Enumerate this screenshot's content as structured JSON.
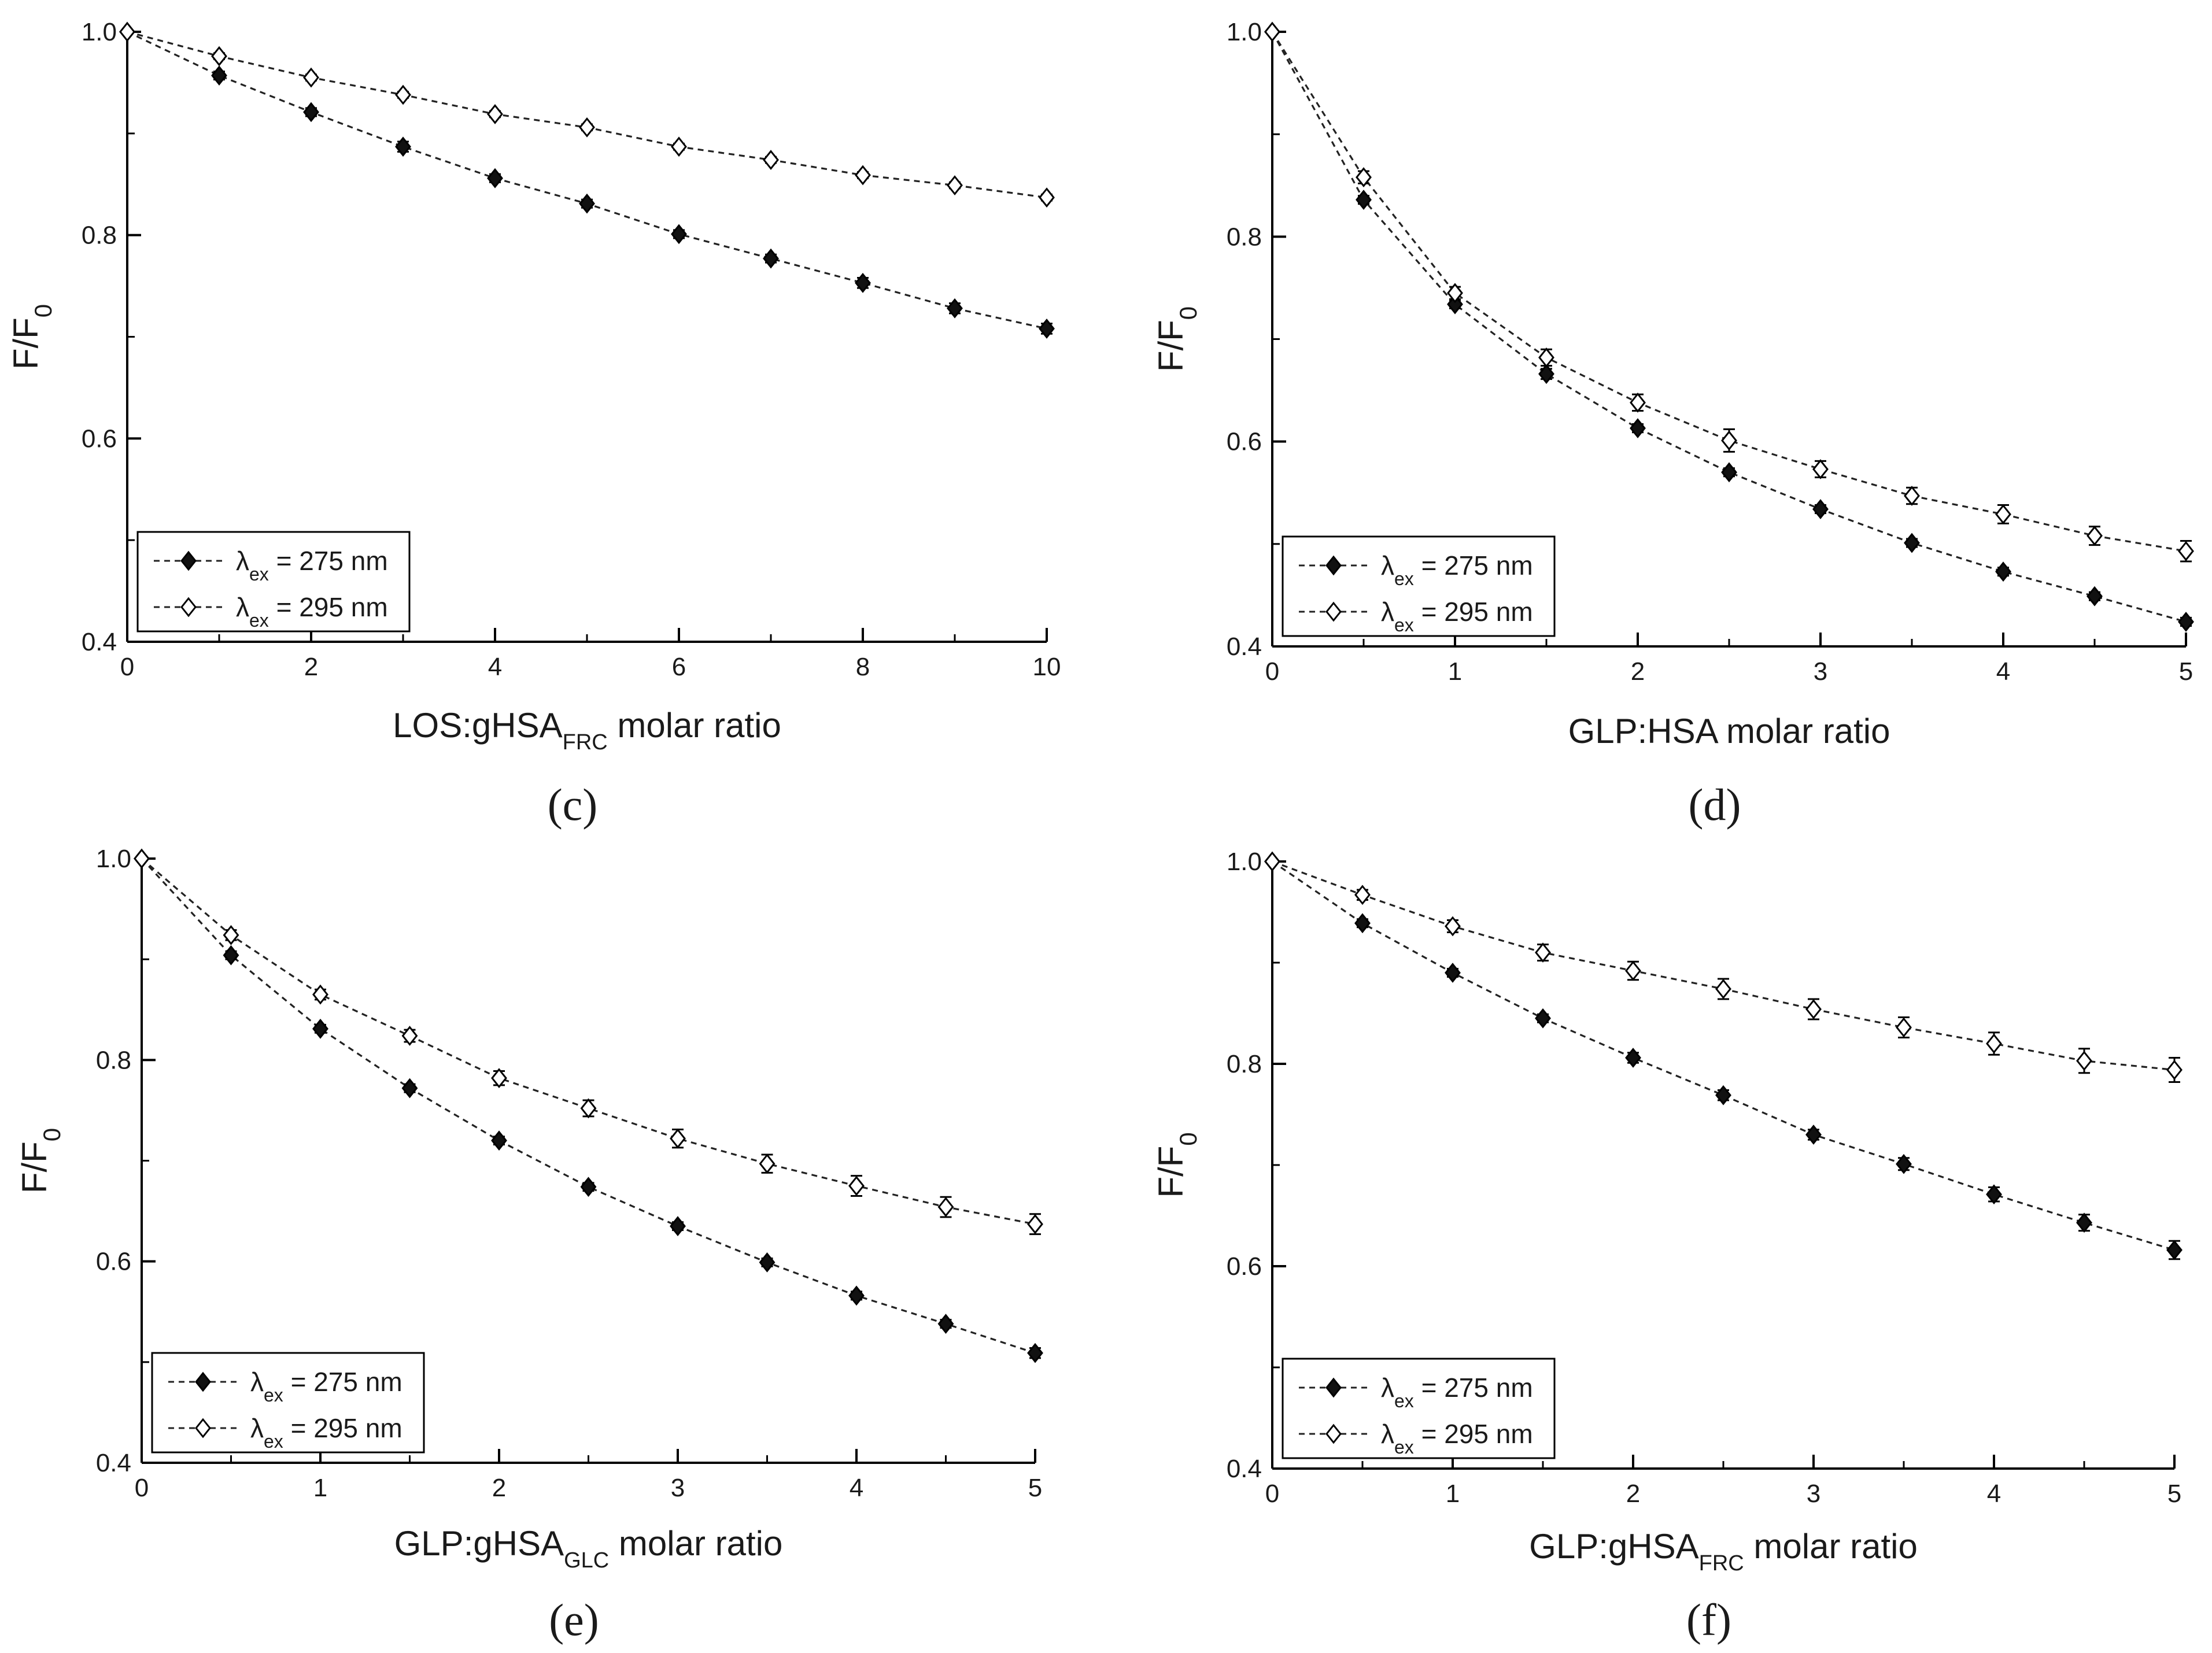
{
  "colors": {
    "line": "#222222",
    "filled_marker": "#111111",
    "open_marker_fill": "#ffffff",
    "background": "#ffffff"
  },
  "legend_labels": {
    "s275": {
      "symbol": "λ",
      "sub": "ex",
      "rest": " = 275 nm"
    },
    "s295": {
      "symbol": "λ",
      "sub": "ex",
      "rest": " = 295 nm"
    }
  },
  "chart_data": [
    {
      "type": "line",
      "panel": "(c)",
      "ylabel": {
        "main": "F/F",
        "sub": "0"
      },
      "xlabel": {
        "pre": "LOS:gHSA",
        "sub": "FRC",
        "post": " molar ratio"
      },
      "xlim": [
        0,
        10
      ],
      "ylim": [
        0.4,
        1.0
      ],
      "xticks": [
        "0",
        "2",
        "4",
        "6",
        "8",
        "10"
      ],
      "yticks": [
        "0.4",
        "0.6",
        "0.8",
        "1.0"
      ],
      "legend": "bottom-left",
      "series": [
        {
          "key": "s275",
          "marker": "filled-diamond",
          "x": [
            0,
            1,
            2,
            3,
            4,
            5,
            6,
            7,
            8,
            9,
            10
          ],
          "y": [
            1.0,
            0.957,
            0.921,
            0.887,
            0.856,
            0.831,
            0.801,
            0.777,
            0.753,
            0.728,
            0.708
          ],
          "err": [
            0,
            0.004,
            0.004,
            0.005,
            0.004,
            0.004,
            0.004,
            0.004,
            0.005,
            0.005,
            0.005
          ]
        },
        {
          "key": "s295",
          "marker": "open-diamond",
          "x": [
            0,
            1,
            2,
            3,
            4,
            5,
            6,
            7,
            8,
            9,
            10
          ],
          "y": [
            1.0,
            0.976,
            0.955,
            0.938,
            0.919,
            0.906,
            0.887,
            0.874,
            0.859,
            0.849,
            0.837
          ],
          "err": [
            0,
            0.003,
            0.003,
            0.003,
            0.003,
            0.003,
            0.003,
            0.003,
            0.003,
            0.003,
            0.003
          ]
        }
      ]
    },
    {
      "type": "line",
      "panel": "(d)",
      "ylabel": {
        "main": "F/F",
        "sub": "0"
      },
      "xlabel": {
        "pre": "GLP:HSA molar ratio",
        "sub": "",
        "post": ""
      },
      "xlim": [
        0,
        5
      ],
      "ylim": [
        0.4,
        1.0
      ],
      "xticks": [
        "0",
        "1",
        "2",
        "3",
        "4",
        "5"
      ],
      "yticks": [
        "0.4",
        "0.6",
        "0.8",
        "1.0"
      ],
      "legend": "bottom-left",
      "series": [
        {
          "key": "s275",
          "marker": "filled-diamond",
          "x": [
            0,
            0.5,
            1,
            1.5,
            2,
            2.5,
            3,
            3.5,
            4,
            4.5,
            5
          ],
          "y": [
            1.0,
            0.836,
            0.734,
            0.666,
            0.613,
            0.57,
            0.534,
            0.501,
            0.473,
            0.449,
            0.424
          ],
          "err": [
            0,
            0.004,
            0.004,
            0.005,
            0.004,
            0.004,
            0.004,
            0.004,
            0.004,
            0.004,
            0.004
          ]
        },
        {
          "key": "s295",
          "marker": "open-diamond",
          "x": [
            0,
            0.5,
            1,
            1.5,
            2,
            2.5,
            3,
            3.5,
            4,
            4.5,
            5
          ],
          "y": [
            1.0,
            0.858,
            0.745,
            0.682,
            0.638,
            0.601,
            0.573,
            0.547,
            0.529,
            0.508,
            0.493
          ],
          "err": [
            0,
            0.006,
            0.006,
            0.008,
            0.008,
            0.011,
            0.008,
            0.008,
            0.009,
            0.009,
            0.01
          ]
        }
      ]
    },
    {
      "type": "line",
      "panel": "(e)",
      "ylabel": {
        "main": "F/F",
        "sub": "0"
      },
      "xlabel": {
        "pre": "GLP:gHSA",
        "sub": "GLC",
        "post": " molar ratio"
      },
      "xlim": [
        0,
        5
      ],
      "ylim": [
        0.4,
        1.0
      ],
      "xticks": [
        "0",
        "1",
        "2",
        "3",
        "4",
        "5"
      ],
      "yticks": [
        "0.4",
        "0.6",
        "0.8",
        "1.0"
      ],
      "legend": "bottom-left",
      "series": [
        {
          "key": "s275",
          "marker": "filled-diamond",
          "x": [
            0,
            0.5,
            1,
            1.5,
            2,
            2.5,
            3,
            3.5,
            4,
            4.5,
            5
          ],
          "y": [
            1.0,
            0.904,
            0.831,
            0.772,
            0.72,
            0.674,
            0.635,
            0.599,
            0.566,
            0.538,
            0.509
          ],
          "err": [
            0,
            0.004,
            0.004,
            0.004,
            0.004,
            0.004,
            0.004,
            0.004,
            0.004,
            0.004,
            0.005
          ]
        },
        {
          "key": "s295",
          "marker": "open-diamond",
          "x": [
            0,
            0.5,
            1,
            1.5,
            2,
            2.5,
            3,
            3.5,
            4,
            4.5,
            5
          ],
          "y": [
            1.0,
            0.924,
            0.865,
            0.824,
            0.782,
            0.752,
            0.722,
            0.697,
            0.675,
            0.654,
            0.637
          ],
          "err": [
            0,
            0.005,
            0.005,
            0.006,
            0.007,
            0.008,
            0.009,
            0.009,
            0.01,
            0.01,
            0.01
          ]
        }
      ]
    },
    {
      "type": "line",
      "panel": "(f)",
      "ylabel": {
        "main": "F/F",
        "sub": "0"
      },
      "xlabel": {
        "pre": "GLP:gHSA",
        "sub": "FRC",
        "post": " molar ratio"
      },
      "xlim": [
        0,
        5
      ],
      "ylim": [
        0.4,
        1.0
      ],
      "xticks": [
        "0",
        "1",
        "2",
        "3",
        "4",
        "5"
      ],
      "yticks": [
        "0.4",
        "0.6",
        "0.8",
        "1.0"
      ],
      "legend": "bottom-left",
      "series": [
        {
          "key": "s275",
          "marker": "filled-diamond",
          "x": [
            0,
            0.5,
            1,
            1.5,
            2,
            2.5,
            3,
            3.5,
            4,
            4.5,
            5
          ],
          "y": [
            1.0,
            0.939,
            0.89,
            0.845,
            0.806,
            0.769,
            0.73,
            0.701,
            0.671,
            0.643,
            0.616
          ],
          "err": [
            0,
            0.004,
            0.004,
            0.004,
            0.005,
            0.005,
            0.005,
            0.006,
            0.007,
            0.008,
            0.009
          ]
        },
        {
          "key": "s295",
          "marker": "open-diamond",
          "x": [
            0,
            0.5,
            1,
            1.5,
            2,
            2.5,
            3,
            3.5,
            4,
            4.5,
            5
          ],
          "y": [
            1.0,
            0.967,
            0.936,
            0.91,
            0.892,
            0.874,
            0.854,
            0.836,
            0.82,
            0.803,
            0.794
          ],
          "err": [
            0,
            0.005,
            0.006,
            0.008,
            0.009,
            0.01,
            0.01,
            0.01,
            0.011,
            0.012,
            0.012
          ]
        }
      ]
    }
  ]
}
